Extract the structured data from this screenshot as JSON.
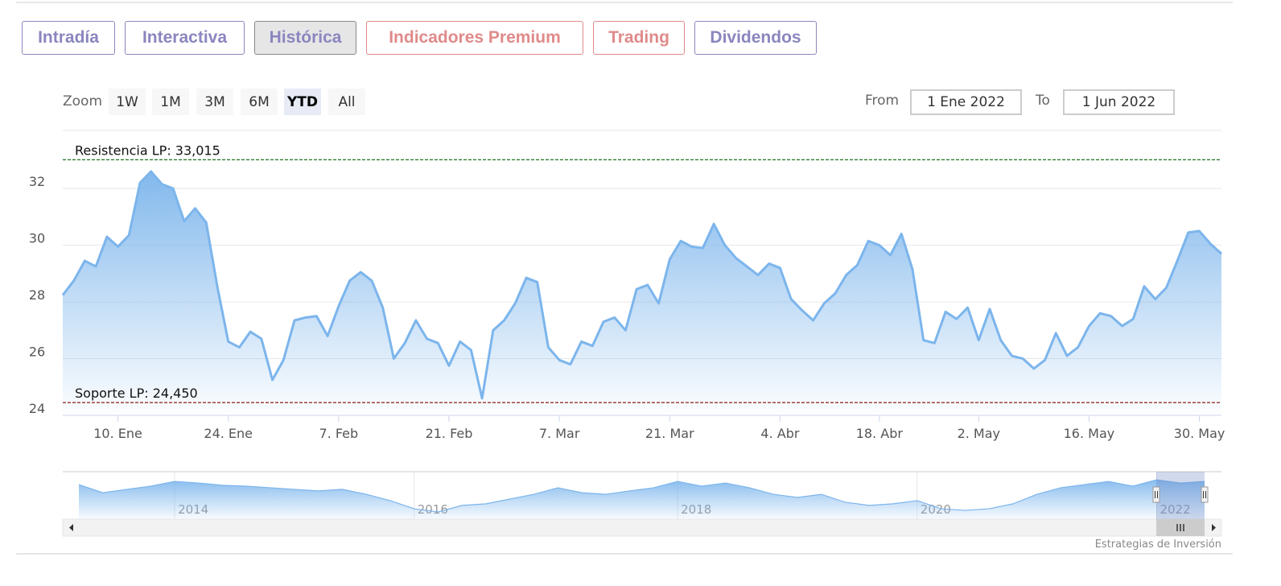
{
  "tabs": [
    "Intradía",
    "Interactiva",
    "Histórica",
    "Indicadores Premium",
    "Trading",
    "Dividendos"
  ],
  "active_tab": "Histórica",
  "range_selector": {
    "zoom_label": "Zoom",
    "buttons": [
      "1W",
      "1M",
      "3M",
      "6M",
      "YTD",
      "All"
    ],
    "selected": "YTD",
    "from_label": "From",
    "from": "1 Ene 2022",
    "to_label": "To",
    "to": "1 Jun 2022"
  },
  "credit": "Estrategias de Inversión",
  "chart_data": {
    "type": "area",
    "color": "#7cb5ec",
    "categories": [
      null,
      null,
      null,
      null,
      null,
      "10. Ene",
      null,
      null,
      null,
      null,
      null,
      null,
      null,
      null,
      null,
      "24. Ene",
      null,
      null,
      null,
      null,
      null,
      null,
      null,
      null,
      null,
      "7. Feb",
      null,
      null,
      null,
      null,
      null,
      null,
      null,
      null,
      null,
      "21. Feb",
      null,
      null,
      null,
      null,
      null,
      null,
      null,
      null,
      null,
      "7. Mar",
      null,
      null,
      null,
      null,
      null,
      null,
      null,
      null,
      null,
      "21. Mar",
      null,
      null,
      null,
      null,
      null,
      null,
      null,
      null,
      null,
      "4. Abr",
      null,
      null,
      null,
      null,
      null,
      null,
      null,
      null,
      "18. Abr",
      null,
      null,
      null,
      null,
      null,
      null,
      null,
      null,
      "2. May",
      null,
      null,
      null,
      null,
      null,
      null,
      null,
      null,
      null,
      "16. May",
      null,
      null,
      null,
      null,
      null,
      null,
      null,
      null,
      null,
      "30. May",
      null,
      null
    ],
    "values": [
      28.24,
      28.75,
      29.45,
      29.25,
      30.3,
      29.95,
      30.35,
      32.2,
      32.6,
      32.15,
      32.0,
      30.85,
      31.3,
      30.8,
      28.55,
      26.6,
      26.4,
      26.95,
      26.7,
      25.25,
      25.95,
      27.35,
      27.45,
      27.5,
      26.8,
      27.85,
      28.75,
      29.05,
      28.75,
      27.8,
      26.0,
      26.55,
      27.35,
      26.7,
      26.55,
      25.75,
      26.6,
      26.3,
      24.6,
      27.0,
      27.35,
      27.95,
      28.85,
      28.7,
      26.4,
      25.95,
      25.8,
      26.6,
      26.45,
      27.3,
      27.45,
      27.0,
      28.45,
      28.6,
      27.95,
      29.5,
      30.15,
      29.95,
      29.9,
      30.75,
      30.0,
      29.55,
      29.25,
      28.95,
      29.35,
      29.2,
      28.1,
      27.7,
      27.35,
      27.95,
      28.3,
      28.95,
      29.3,
      30.15,
      30.0,
      29.65,
      30.4,
      29.15,
      26.65,
      26.55,
      27.65,
      27.4,
      27.8,
      26.65,
      27.75,
      26.65,
      26.1,
      26.0,
      25.65,
      25.95,
      26.9,
      26.1,
      26.4,
      27.15,
      27.6,
      27.5,
      27.15,
      27.4,
      28.55,
      28.1,
      28.5,
      29.45,
      30.45,
      30.5,
      30.05,
      29.7
    ],
    "ylim": [
      24,
      34.05
    ],
    "yticks": [
      24,
      26,
      28,
      30,
      32
    ],
    "grid": true,
    "plot_lines": [
      {
        "value": 33.015,
        "label": "Resistencia LP: 33,015",
        "color": "#2e7d32"
      },
      {
        "value": 24.45,
        "label": "Soporte LP: 24,450",
        "color": "#8b1a1a"
      }
    ],
    "navigator": {
      "type": "area",
      "color": "#7cb5ec",
      "categories": [
        null,
        null,
        null,
        null,
        "2014",
        null,
        null,
        null,
        null,
        null,
        null,
        null,
        null,
        null,
        "2016",
        null,
        null,
        null,
        null,
        null,
        null,
        null,
        null,
        null,
        null,
        "2018",
        null,
        null,
        null,
        null,
        null,
        null,
        null,
        null,
        null,
        "2020",
        null,
        null,
        null,
        null,
        null,
        null,
        null,
        null,
        null,
        "2022",
        null,
        null
      ],
      "values": [
        30.3,
        26.7,
        28.2,
        29.6,
        31.7,
        31.0,
        30.0,
        29.6,
        28.9,
        28.2,
        27.5,
        28.2,
        26.0,
        23.2,
        19.6,
        18.2,
        21.1,
        21.8,
        23.9,
        26.0,
        28.9,
        26.7,
        26.0,
        27.5,
        28.9,
        31.7,
        29.6,
        31.0,
        28.9,
        26.0,
        24.6,
        26.0,
        22.5,
        21.1,
        21.8,
        23.2,
        19.6,
        18.9,
        19.6,
        21.8,
        26.0,
        28.9,
        30.3,
        31.7,
        29.6,
        32.4,
        31.0,
        31.7
      ],
      "ylim": [
        15,
        36
      ]
    }
  }
}
